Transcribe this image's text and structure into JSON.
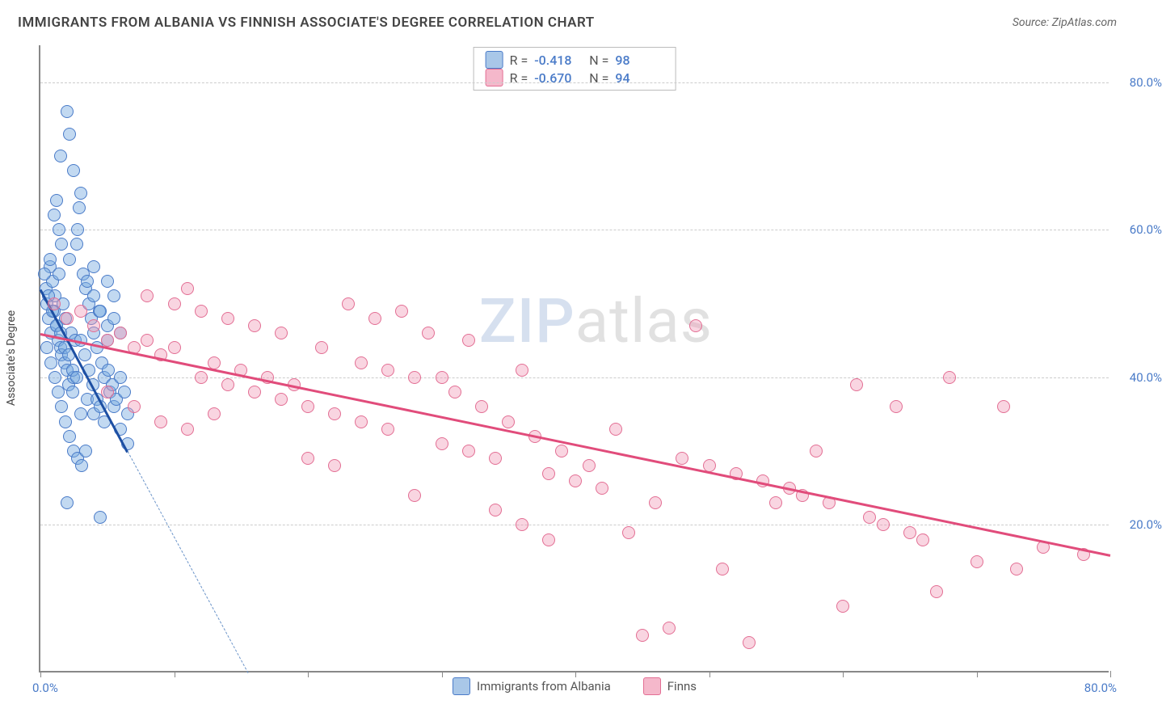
{
  "title": "IMMIGRANTS FROM ALBANIA VS FINNISH ASSOCIATE'S DEGREE CORRELATION CHART",
  "source": "Source: ZipAtlas.com",
  "yaxis_title": "Associate's Degree",
  "watermark_a": "ZIP",
  "watermark_b": "atlas",
  "chart": {
    "type": "scatter",
    "xlim": [
      0,
      80
    ],
    "ylim": [
      0,
      85
    ],
    "x_min_label": "0.0%",
    "x_max_label": "80.0%",
    "y_ticks": [
      20,
      40,
      60,
      80
    ],
    "y_tick_labels": [
      "20.0%",
      "40.0%",
      "60.0%",
      "80.0%"
    ],
    "x_ticks": [
      0,
      10,
      20,
      30,
      40,
      50,
      60,
      70,
      80
    ],
    "grid_color": "#cccccc",
    "axis_color": "#888888",
    "background_color": "#ffffff",
    "tick_label_color": "#4a7bc8",
    "point_radius": 8,
    "point_border_width": 1.5
  },
  "series": [
    {
      "name": "Immigrants from Albania",
      "fill": "rgba(120,170,225,0.45)",
      "stroke": "#4a7bc8",
      "swatch_fill": "#a9c7e8",
      "swatch_stroke": "#4a7bc8",
      "R_label": "R =",
      "R": "-0.418",
      "N_label": "N =",
      "N": "98",
      "trend": {
        "x1": 0,
        "y1": 52,
        "x2": 6.5,
        "y2": 30,
        "color": "#1d4fa3",
        "width": 3
      },
      "trend_dash": {
        "x1": 6.5,
        "y1": 30,
        "x2": 15.5,
        "y2": 0,
        "color": "#6b94c9",
        "width": 1.5
      },
      "points": [
        [
          0.4,
          52
        ],
        [
          0.5,
          50
        ],
        [
          0.6,
          48
        ],
        [
          0.7,
          55
        ],
        [
          0.8,
          46
        ],
        [
          0.9,
          53
        ],
        [
          1.0,
          49
        ],
        [
          1.1,
          51
        ],
        [
          1.2,
          47
        ],
        [
          1.3,
          45
        ],
        [
          1.4,
          54
        ],
        [
          1.5,
          44
        ],
        [
          1.6,
          43
        ],
        [
          1.7,
          50
        ],
        [
          1.8,
          42
        ],
        [
          1.9,
          48
        ],
        [
          2.0,
          41
        ],
        [
          2.1,
          39
        ],
        [
          2.2,
          56
        ],
        [
          2.3,
          46
        ],
        [
          2.4,
          38
        ],
        [
          2.5,
          40
        ],
        [
          2.6,
          45
        ],
        [
          2.7,
          58
        ],
        [
          2.8,
          60
        ],
        [
          2.9,
          63
        ],
        [
          3.0,
          65
        ],
        [
          1.0,
          62
        ],
        [
          1.2,
          64
        ],
        [
          1.4,
          60
        ],
        [
          1.6,
          58
        ],
        [
          2.0,
          76
        ],
        [
          2.2,
          73
        ],
        [
          2.5,
          68
        ],
        [
          1.5,
          70
        ],
        [
          3.2,
          54
        ],
        [
          3.4,
          52
        ],
        [
          3.6,
          50
        ],
        [
          3.8,
          48
        ],
        [
          4.0,
          46
        ],
        [
          4.2,
          44
        ],
        [
          4.4,
          49
        ],
        [
          4.6,
          42
        ],
        [
          4.8,
          40
        ],
        [
          5.0,
          45
        ],
        [
          5.2,
          38
        ],
        [
          5.5,
          36
        ],
        [
          6.0,
          33
        ],
        [
          6.5,
          31
        ],
        [
          5.0,
          53
        ],
        [
          5.5,
          51
        ],
        [
          0.5,
          44
        ],
        [
          0.8,
          42
        ],
        [
          1.1,
          40
        ],
        [
          1.3,
          38
        ],
        [
          1.6,
          36
        ],
        [
          1.9,
          34
        ],
        [
          2.2,
          32
        ],
        [
          2.5,
          30
        ],
        [
          2.8,
          29
        ],
        [
          3.1,
          28
        ],
        [
          3.4,
          30
        ],
        [
          3.0,
          35
        ],
        [
          3.5,
          37
        ],
        [
          4.0,
          35
        ],
        [
          2.0,
          23
        ],
        [
          4.5,
          21
        ],
        [
          0.6,
          51
        ],
        [
          0.9,
          49
        ],
        [
          1.2,
          47
        ],
        [
          1.5,
          46
        ],
        [
          1.8,
          44
        ],
        [
          2.1,
          43
        ],
        [
          2.4,
          41
        ],
        [
          2.7,
          40
        ],
        [
          3.0,
          45
        ],
        [
          3.3,
          43
        ],
        [
          3.6,
          41
        ],
        [
          3.9,
          39
        ],
        [
          4.2,
          37
        ],
        [
          4.5,
          36
        ],
        [
          4.8,
          34
        ],
        [
          5.1,
          41
        ],
        [
          5.4,
          39
        ],
        [
          5.7,
          37
        ],
        [
          6.0,
          40
        ],
        [
          6.3,
          38
        ],
        [
          4.0,
          51
        ],
        [
          4.5,
          49
        ],
        [
          5.0,
          47
        ],
        [
          5.5,
          48
        ],
        [
          6.0,
          46
        ],
        [
          6.5,
          35
        ],
        [
          3.5,
          53
        ],
        [
          4.0,
          55
        ],
        [
          0.3,
          54
        ],
        [
          0.7,
          56
        ]
      ]
    },
    {
      "name": "Finns",
      "fill": "rgba(240,150,180,0.40)",
      "stroke": "#e36f94",
      "swatch_fill": "#f5b8cb",
      "swatch_stroke": "#e36f94",
      "R_label": "R =",
      "R": "-0.670",
      "N_label": "N =",
      "N": "94",
      "trend": {
        "x1": 0,
        "y1": 46,
        "x2": 80,
        "y2": 16,
        "color": "#e14c7b",
        "width": 3
      },
      "points": [
        [
          1,
          50
        ],
        [
          2,
          48
        ],
        [
          3,
          49
        ],
        [
          4,
          47
        ],
        [
          5,
          45
        ],
        [
          6,
          46
        ],
        [
          7,
          44
        ],
        [
          8,
          45
        ],
        [
          9,
          43
        ],
        [
          10,
          44
        ],
        [
          11,
          52
        ],
        [
          12,
          40
        ],
        [
          13,
          42
        ],
        [
          14,
          39
        ],
        [
          15,
          41
        ],
        [
          16,
          38
        ],
        [
          17,
          40
        ],
        [
          18,
          37
        ],
        [
          19,
          39
        ],
        [
          20,
          36
        ],
        [
          21,
          44
        ],
        [
          22,
          35
        ],
        [
          23,
          50
        ],
        [
          24,
          34
        ],
        [
          25,
          48
        ],
        [
          26,
          33
        ],
        [
          27,
          49
        ],
        [
          28,
          40
        ],
        [
          29,
          46
        ],
        [
          30,
          31
        ],
        [
          31,
          38
        ],
        [
          32,
          30
        ],
        [
          33,
          36
        ],
        [
          34,
          29
        ],
        [
          35,
          34
        ],
        [
          36,
          41
        ],
        [
          37,
          32
        ],
        [
          38,
          27
        ],
        [
          39,
          30
        ],
        [
          40,
          26
        ],
        [
          41,
          28
        ],
        [
          42,
          25
        ],
        [
          43,
          33
        ],
        [
          44,
          19
        ],
        [
          45,
          5
        ],
        [
          46,
          23
        ],
        [
          47,
          6
        ],
        [
          48,
          29
        ],
        [
          49,
          47
        ],
        [
          50,
          28
        ],
        [
          51,
          14
        ],
        [
          52,
          27
        ],
        [
          53,
          4
        ],
        [
          54,
          26
        ],
        [
          55,
          23
        ],
        [
          56,
          25
        ],
        [
          57,
          24
        ],
        [
          58,
          30
        ],
        [
          59,
          23
        ],
        [
          60,
          9
        ],
        [
          61,
          39
        ],
        [
          62,
          21
        ],
        [
          63,
          20
        ],
        [
          64,
          36
        ],
        [
          65,
          19
        ],
        [
          66,
          18
        ],
        [
          67,
          11
        ],
        [
          68,
          40
        ],
        [
          70,
          15
        ],
        [
          72,
          36
        ],
        [
          73,
          14
        ],
        [
          75,
          17
        ],
        [
          78,
          16
        ],
        [
          8,
          51
        ],
        [
          10,
          50
        ],
        [
          12,
          49
        ],
        [
          14,
          48
        ],
        [
          16,
          47
        ],
        [
          18,
          46
        ],
        [
          20,
          29
        ],
        [
          22,
          28
        ],
        [
          24,
          42
        ],
        [
          26,
          41
        ],
        [
          28,
          24
        ],
        [
          30,
          40
        ],
        [
          32,
          45
        ],
        [
          34,
          22
        ],
        [
          36,
          20
        ],
        [
          38,
          18
        ],
        [
          5,
          38
        ],
        [
          7,
          36
        ],
        [
          9,
          34
        ],
        [
          11,
          33
        ],
        [
          13,
          35
        ]
      ]
    }
  ],
  "bottom_legend": [
    {
      "label": "Immigrants from Albania",
      "fill": "#a9c7e8",
      "stroke": "#4a7bc8"
    },
    {
      "label": "Finns",
      "fill": "#f5b8cb",
      "stroke": "#e36f94"
    }
  ]
}
